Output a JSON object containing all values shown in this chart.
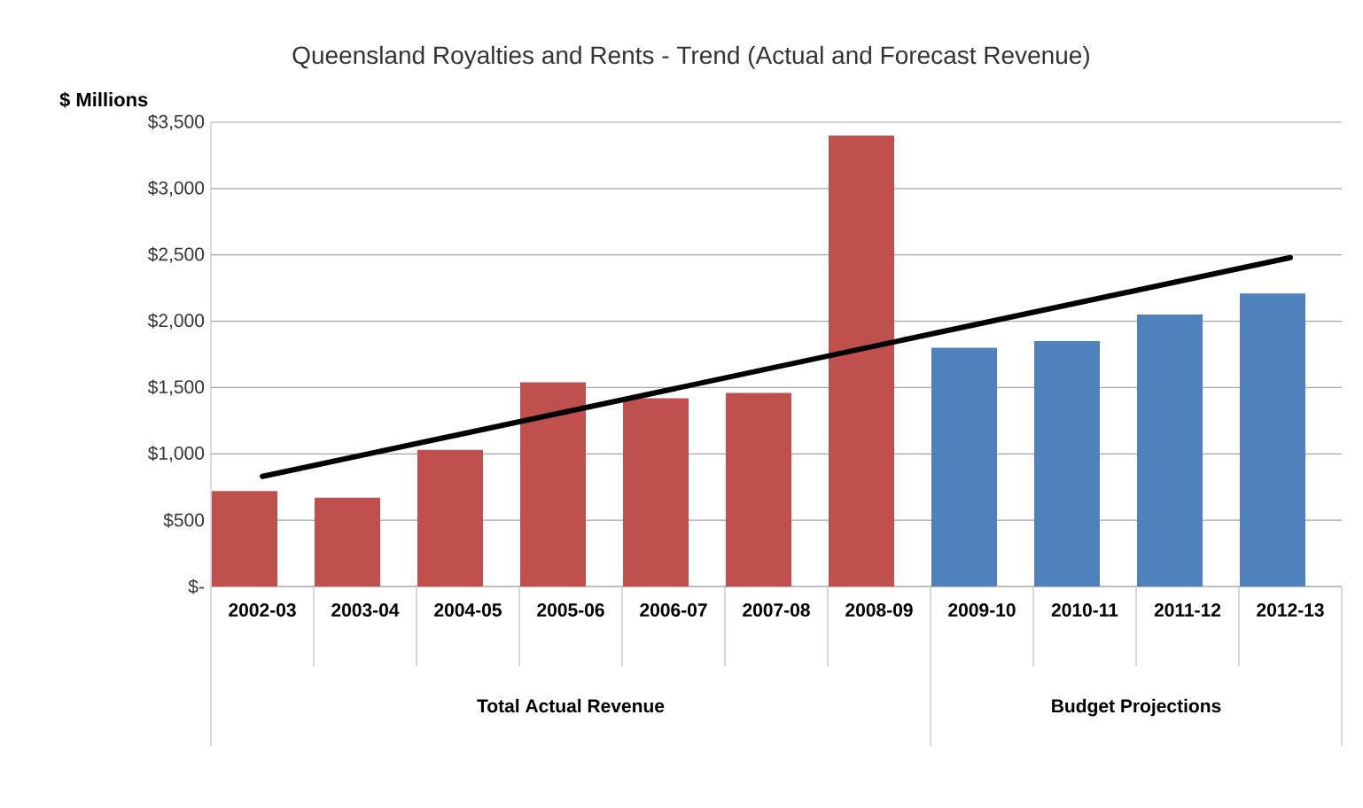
{
  "chart_data": {
    "type": "bar",
    "title": "Queensland Royalties and Rents - Trend (Actual and Forecast Revenue)",
    "ylabel": "$ Millions",
    "categories": [
      "2002-03",
      "2003-04",
      "2004-05",
      "2005-06",
      "2006-07",
      "2007-08",
      "2008-09",
      "2009-10",
      "2010-11",
      "2011-12",
      "2012-13"
    ],
    "series": [
      {
        "colors": [
          "#c0504d",
          "#c0504d",
          "#c0504d",
          "#c0504d",
          "#c0504d",
          "#c0504d",
          "#c0504d",
          "#4f81bd",
          "#4f81bd",
          "#4f81bd",
          "#4f81bd"
        ],
        "values": [
          720,
          670,
          1030,
          1540,
          1420,
          1460,
          3400,
          1800,
          1850,
          2050,
          2210
        ]
      },
      {
        "type": "line",
        "color": "#000000",
        "values": [
          830,
          null,
          null,
          null,
          null,
          null,
          null,
          null,
          null,
          null,
          2480
        ]
      }
    ],
    "ylim": [
      0,
      3500
    ],
    "yticks": [
      {
        "value": 0,
        "label": "$-"
      },
      {
        "value": 500,
        "label": "$500"
      },
      {
        "value": 1000,
        "label": "$1,000"
      },
      {
        "value": 1500,
        "label": "$1,500"
      },
      {
        "value": 2000,
        "label": "$2,000"
      },
      {
        "value": 2500,
        "label": "$2,500"
      },
      {
        "value": 3000,
        "label": "$3,000"
      },
      {
        "value": 3500,
        "label": "$3,500"
      }
    ],
    "grid": "y",
    "annotations": [
      "Total Actual Revenue",
      "Budget Projections"
    ]
  }
}
